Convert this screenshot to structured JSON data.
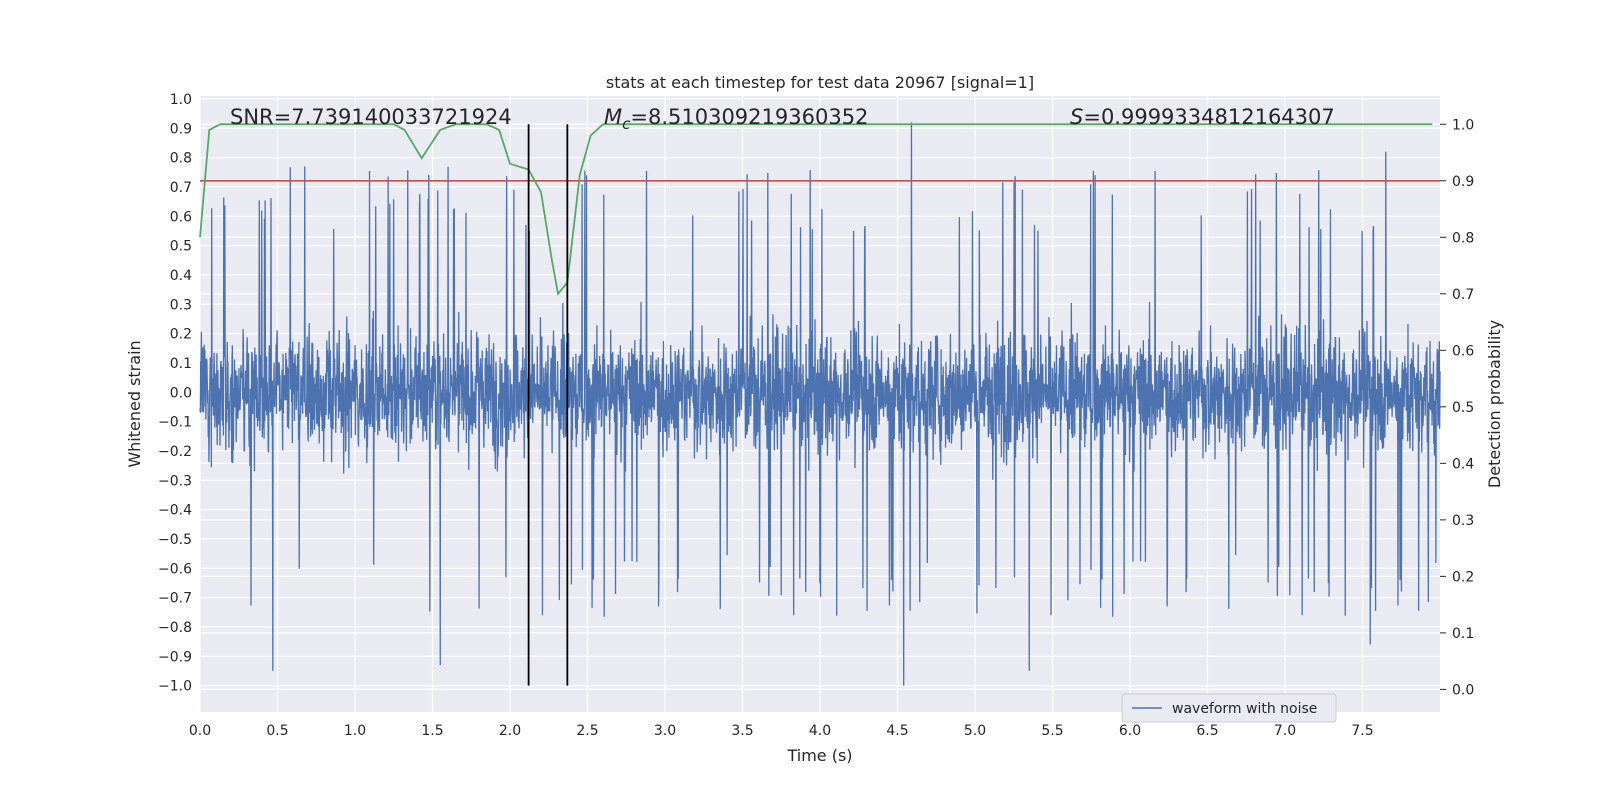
{
  "chart_data": {
    "type": "line",
    "title": "stats at each timestep for test data 20967 [signal=1]",
    "xlabel": "Time (s)",
    "ylabel": "Whitened strain",
    "y2label": "Detection probability",
    "xlim": [
      0.0,
      8.0
    ],
    "ylim": [
      -1.09,
      1.01
    ],
    "y2lim": [
      -0.04,
      1.05
    ],
    "xticks": [
      "0.0",
      "0.5",
      "1.0",
      "1.5",
      "2.0",
      "2.5",
      "3.0",
      "3.5",
      "4.0",
      "4.5",
      "5.0",
      "5.5",
      "6.0",
      "6.5",
      "7.0",
      "7.5"
    ],
    "yticks": [
      "1.0",
      "0.9",
      "0.8",
      "0.7",
      "0.6",
      "0.5",
      "0.4",
      "0.3",
      "0.2",
      "0.1",
      "0.0",
      "−0.1",
      "−0.2",
      "−0.3",
      "−0.4",
      "−0.5",
      "−0.6",
      "−0.7",
      "−0.8",
      "−0.9",
      "−1.0"
    ],
    "y2ticks": [
      "1.0",
      "0.9",
      "0.8",
      "0.7",
      "0.6",
      "0.5",
      "0.4",
      "0.3",
      "0.2",
      "0.1",
      "0.0"
    ],
    "grid": true,
    "legend_position": "bottom-right",
    "annotations": {
      "snr": "SNR=7.739140033721924",
      "mc_symbol": "M",
      "mc_sub": "c",
      "mc_value": "=8.510309219360352",
      "s_symbol": "S",
      "s_value": "=0.9999334812164307"
    },
    "vlines_x": [
      2.12,
      2.37
    ],
    "threshold": {
      "axis": "right",
      "y": 0.9,
      "color": "#c44e52"
    },
    "colors": {
      "waveform": "#4c72b0",
      "probability": "#55a868",
      "threshold": "#c44e52",
      "vline": "#000000",
      "background": "#eaeaf2"
    },
    "series": [
      {
        "name": "waveform with noise",
        "axis": "left",
        "x_range": [
          0.0,
          8.0
        ],
        "amplitude_envelope": {
          "typical_max": 0.55,
          "peak_max": 0.92,
          "typical_min": -0.55,
          "peak_min": -1.0
        },
        "notable_peaks": [
          {
            "x": 0.47,
            "y": -0.95
          },
          {
            "x": 1.55,
            "y": 0.76
          },
          {
            "x": 1.55,
            "y": -0.93
          },
          {
            "x": 4.54,
            "y": -1.0
          },
          {
            "x": 4.59,
            "y": 0.92
          },
          {
            "x": 5.35,
            "y": -0.95
          },
          {
            "x": 7.65,
            "y": 0.82
          },
          {
            "x": 7.55,
            "y": -0.86
          }
        ]
      },
      {
        "name": "",
        "axis": "right",
        "x": [
          0.0,
          0.06,
          0.13,
          0.3,
          0.6,
          1.0,
          1.25,
          1.32,
          1.43,
          1.55,
          1.65,
          1.85,
          1.93,
          2.0,
          2.12,
          2.2,
          2.27,
          2.31,
          2.37,
          2.45,
          2.52,
          2.6,
          2.8,
          3.5,
          4.5,
          5.5,
          6.5,
          7.5,
          7.95
        ],
        "values": [
          0.8,
          0.99,
          1.0,
          1.0,
          1.0,
          1.0,
          1.0,
          0.99,
          0.94,
          0.99,
          1.0,
          1.0,
          0.99,
          0.93,
          0.92,
          0.88,
          0.76,
          0.7,
          0.72,
          0.91,
          0.98,
          1.0,
          1.0,
          1.0,
          1.0,
          1.0,
          1.0,
          1.0,
          1.0
        ]
      }
    ]
  }
}
